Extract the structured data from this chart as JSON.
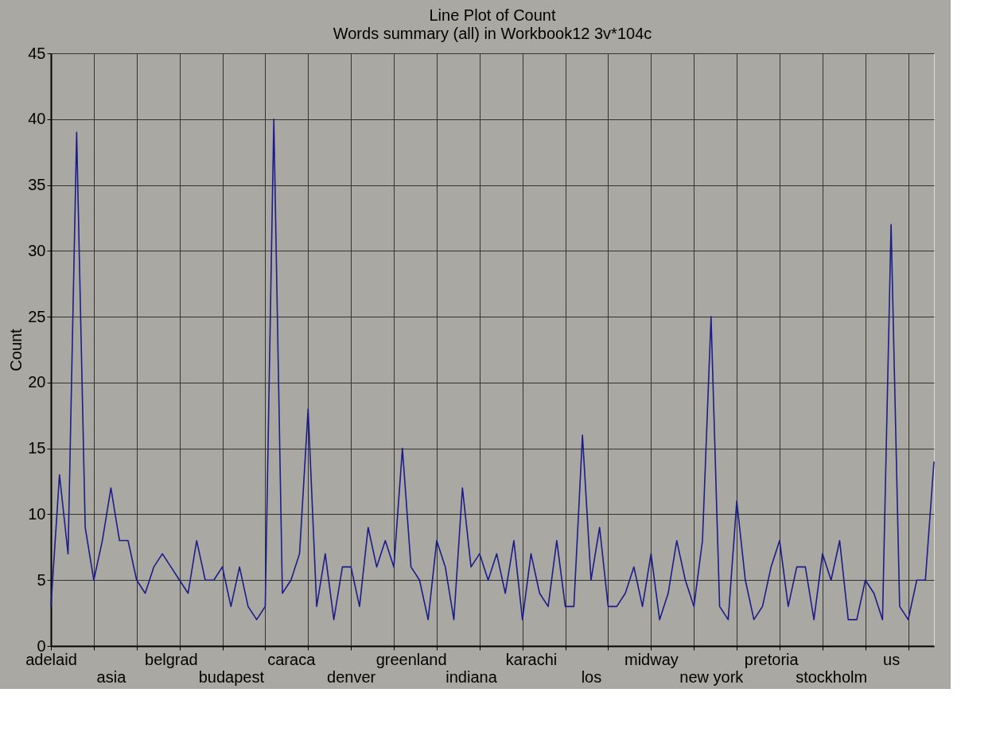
{
  "chart_data": {
    "type": "line",
    "title": "Line Plot of Count",
    "subtitle": "Words summary (all) in Workbook12 3v*104c",
    "ylabel": "Count",
    "categories": [
      "adelaid",
      null,
      null,
      null,
      null,
      null,
      null,
      "asia",
      null,
      null,
      null,
      null,
      null,
      null,
      "belgrad",
      null,
      null,
      null,
      null,
      null,
      null,
      "budapest",
      null,
      null,
      null,
      null,
      null,
      null,
      "caraca",
      null,
      null,
      null,
      null,
      null,
      null,
      "denver",
      null,
      null,
      null,
      null,
      null,
      null,
      "greenland",
      null,
      null,
      null,
      null,
      null,
      null,
      "indiana",
      null,
      null,
      null,
      null,
      null,
      null,
      "karachi",
      null,
      null,
      null,
      null,
      null,
      null,
      "los",
      null,
      null,
      null,
      null,
      null,
      null,
      "midway",
      null,
      null,
      null,
      null,
      null,
      null,
      "new york",
      null,
      null,
      null,
      null,
      null,
      null,
      "pretoria",
      null,
      null,
      null,
      null,
      null,
      null,
      "stockholm",
      null,
      null,
      null,
      null,
      null,
      null,
      "us",
      null,
      null,
      null,
      null,
      null
    ],
    "series": [
      {
        "color": "#1c1c8a",
        "values": [
          3,
          13,
          7,
          39,
          9,
          5,
          8,
          12,
          8,
          8,
          5,
          4,
          6,
          7,
          6,
          5,
          4,
          8,
          5,
          5,
          6,
          3,
          6,
          3,
          2,
          3,
          40,
          4,
          5,
          7,
          18,
          3,
          7,
          2,
          6,
          6,
          3,
          9,
          6,
          8,
          6,
          15,
          6,
          5,
          2,
          8,
          6,
          2,
          12,
          6,
          7,
          5,
          7,
          4,
          8,
          2,
          7,
          4,
          3,
          8,
          3,
          3,
          16,
          5,
          9,
          3,
          3,
          4,
          6,
          3,
          7,
          2,
          4,
          8,
          5,
          3,
          8,
          25,
          3,
          2,
          11,
          5,
          2,
          3,
          6,
          8,
          3,
          6,
          6,
          2,
          7,
          5,
          8,
          2,
          2,
          5,
          4,
          2,
          32,
          3,
          2,
          5,
          5,
          14
        ]
      }
    ],
    "ylim": [
      0,
      45
    ],
    "yticks": [
      0,
      5,
      10,
      15,
      20,
      25,
      30,
      35,
      40,
      45
    ],
    "grid": true,
    "legend": false,
    "marker": "none",
    "line_style": "solid"
  }
}
